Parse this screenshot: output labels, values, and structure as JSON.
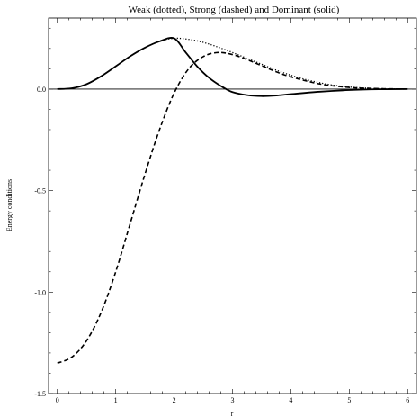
{
  "chart_data": {
    "type": "line",
    "title": "Weak (dotted), Strong (dashed) and Dominant (solid)",
    "xlabel": "r",
    "ylabel": "Energy conditions",
    "xlim": [
      -0.15,
      6.15
    ],
    "ylim": [
      -1.5,
      0.35
    ],
    "x_ticks": [
      0,
      1,
      2,
      3,
      4,
      5,
      6
    ],
    "y_ticks_labeled": [
      0.0,
      -0.5,
      -1.0,
      -1.5
    ],
    "y_tick_labels": [
      "0.0",
      "-0.5",
      "-1.0",
      "-1.5"
    ],
    "grid": false,
    "reference_line_y": 0,
    "series": [
      {
        "style": "dotted",
        "x": [
          0,
          0.25,
          0.5,
          0.75,
          1.0,
          1.25,
          1.5,
          1.75,
          2.0,
          2.25,
          2.5,
          2.75,
          3.0,
          3.25,
          3.5,
          3.75,
          4.0,
          4.25,
          4.5,
          4.75,
          5.0,
          5.25,
          5.5,
          6.0
        ],
        "y": [
          0.0,
          0.004,
          0.024,
          0.063,
          0.112,
          0.162,
          0.204,
          0.235,
          0.25,
          0.245,
          0.23,
          0.207,
          0.18,
          0.151,
          0.122,
          0.093,
          0.068,
          0.047,
          0.031,
          0.018,
          0.01,
          0.005,
          0.002,
          0.0
        ]
      },
      {
        "style": "dashed",
        "x": [
          0,
          0.25,
          0.5,
          0.75,
          1.0,
          1.25,
          1.5,
          1.75,
          2.0,
          2.25,
          2.5,
          2.75,
          3.0,
          3.25,
          3.5,
          3.75,
          4.0,
          4.5,
          5.0,
          5.5,
          6.0
        ],
        "y": [
          -1.35,
          -1.32,
          -1.24,
          -1.1,
          -0.9,
          -0.66,
          -0.42,
          -0.2,
          -0.02,
          0.1,
          0.16,
          0.18,
          0.17,
          0.145,
          0.115,
          0.085,
          0.06,
          0.025,
          0.008,
          0.002,
          0.0
        ]
      },
      {
        "style": "solid",
        "x": [
          0,
          0.25,
          0.5,
          0.75,
          1.0,
          1.25,
          1.5,
          1.75,
          2.0,
          2.2,
          2.4,
          2.6,
          2.8,
          3.0,
          3.25,
          3.5,
          3.75,
          4.0,
          4.5,
          5.0,
          5.5,
          6.0
        ],
        "y": [
          0.0,
          0.004,
          0.024,
          0.063,
          0.112,
          0.162,
          0.204,
          0.235,
          0.25,
          0.18,
          0.11,
          0.055,
          0.015,
          -0.015,
          -0.03,
          -0.035,
          -0.032,
          -0.025,
          -0.013,
          -0.005,
          -0.001,
          0.0
        ]
      }
    ]
  }
}
